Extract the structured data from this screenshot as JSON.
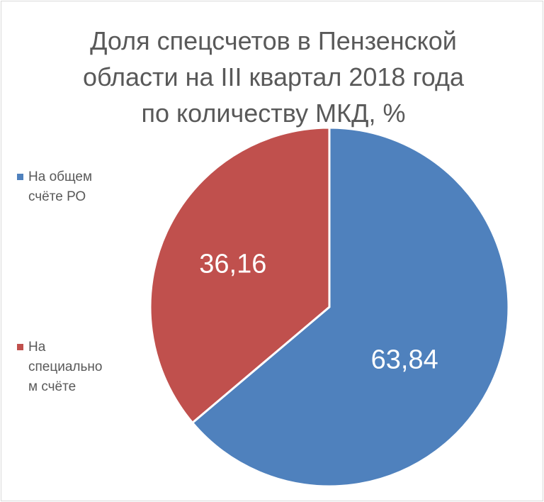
{
  "chart_data": {
    "type": "pie",
    "title_lines": [
      "Доля спецсчетов в Пензенской",
      "области на III квартал 2018 года",
      "по количеству МКД, %"
    ],
    "categories": [
      "На общем счёте РО",
      "На специальном счёте"
    ],
    "values": [
      63.84,
      36.16
    ],
    "value_labels": [
      "63,84",
      "36,16"
    ],
    "legend_lines": [
      [
        "На общем",
        "счёте РО"
      ],
      [
        "На",
        "специально",
        "м счёте"
      ]
    ],
    "colors": [
      "#4f81bd",
      "#c0504d"
    ],
    "start_angle_deg": 0,
    "direction": "clockwise",
    "legend_position": "left"
  }
}
